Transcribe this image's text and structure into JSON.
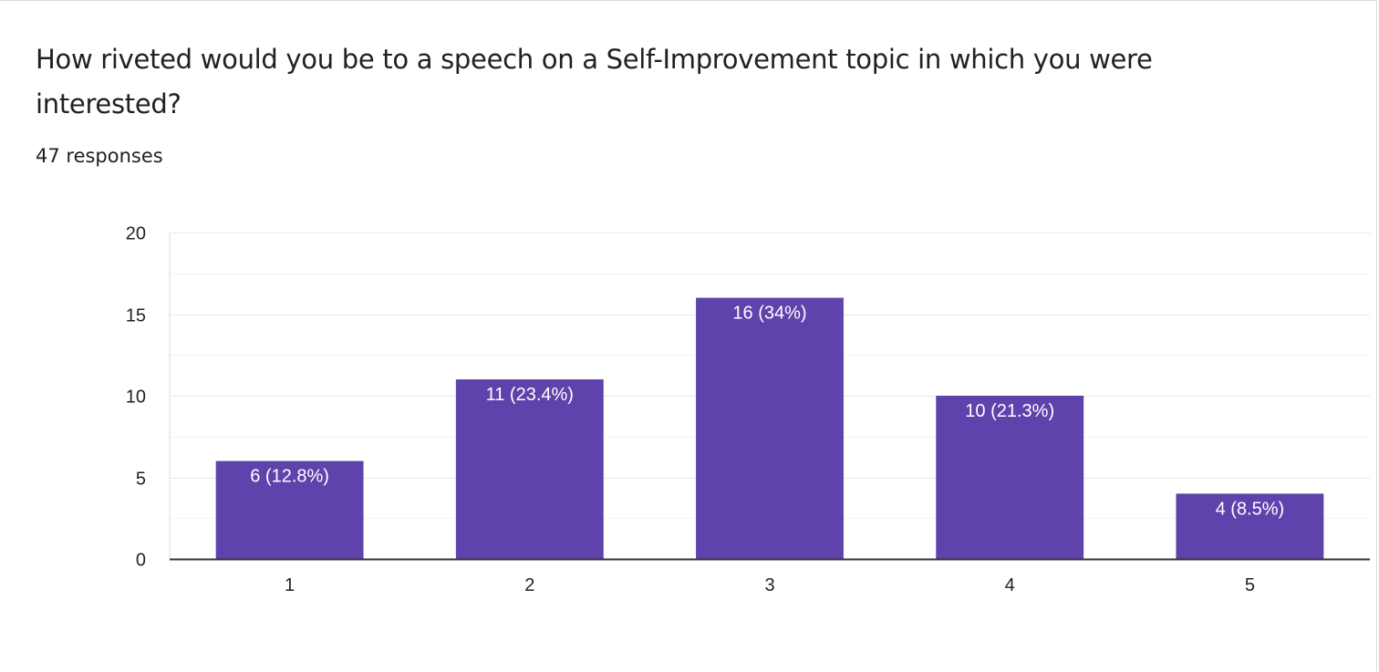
{
  "question": {
    "title": "How riveted would you be to a speech on a Self-Improvement topic in which you were interested?",
    "responses": "47 responses"
  },
  "colors": {
    "bar": "#5e43ad",
    "gridline": "#e8e8e8",
    "minor_gridline": "#f3f3f3",
    "axis": "#333333",
    "text": "#202124"
  },
  "chart_data": {
    "type": "bar",
    "categories": [
      "1",
      "2",
      "3",
      "4",
      "5"
    ],
    "values": [
      6,
      11,
      16,
      10,
      4
    ],
    "data_labels": [
      "6 (12.8%)",
      "11 (23.4%)",
      "16 (34%)",
      "10 (21.3%)",
      "4 (8.5%)"
    ],
    "ylim": [
      0,
      20
    ],
    "yticks": [
      0,
      5,
      10,
      15,
      20
    ],
    "grid": true
  }
}
